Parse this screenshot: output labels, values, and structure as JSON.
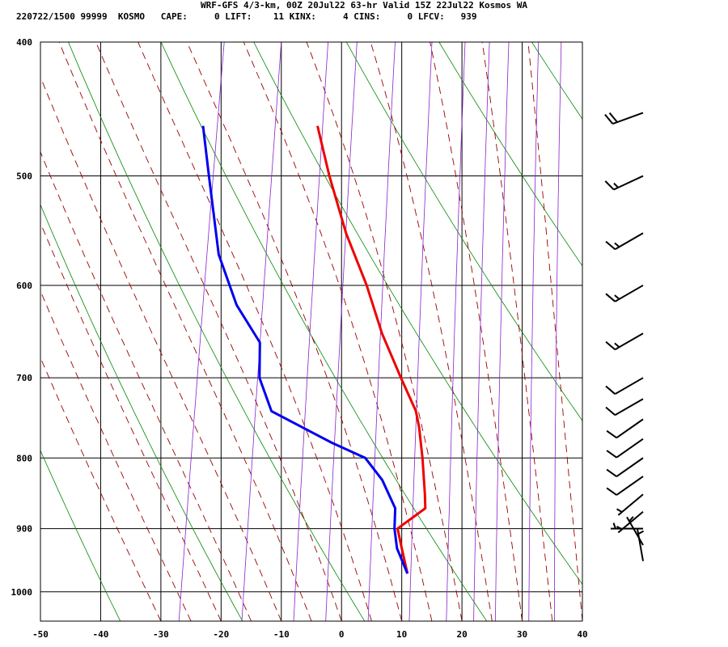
{
  "header": {
    "title": "WRF-GFS 4/3-km, 00Z 20Jul22 63-hr Valid 15Z 22Jul22 Kosmos WA",
    "stats": "220722/1500 99999  KOSMO   CAPE:     0 LIFT:    11 KINX:     4 CINS:     0 LFCV:   939"
  },
  "colors": {
    "temperature": "#ee0000",
    "dewpoint": "#0000ee",
    "dry_adiabat": "#008800",
    "moist_adiabat": "#990000",
    "mixing_ratio": "#8822cc",
    "grid": "#000000"
  },
  "chart_data": {
    "type": "line",
    "title": "",
    "xlabel": "",
    "ylabel": "",
    "x_axis": {
      "min": -50,
      "max": 40,
      "ticks": [
        -50,
        -40,
        -30,
        -20,
        -10,
        0,
        10,
        20,
        30,
        40
      ],
      "tick_labels": [
        "-50",
        "-40",
        "-30",
        "-20",
        "-10",
        "0",
        "10",
        "20",
        "30",
        "40"
      ]
    },
    "y_axis": {
      "scale": "log",
      "min": 400,
      "max": 1050,
      "ticks": [
        400,
        500,
        600,
        700,
        800,
        900,
        1000
      ],
      "tick_labels": [
        "400",
        "500",
        "600",
        "700",
        "800",
        "900",
        "1000"
      ]
    },
    "grid": true,
    "skew": true,
    "series": [
      {
        "role": "temperature",
        "points": [
          [
            970,
            9.5
          ],
          [
            930,
            7.8
          ],
          [
            900,
            6.5
          ],
          [
            870,
            10.5
          ],
          [
            850,
            10.0
          ],
          [
            800,
            8.5
          ],
          [
            760,
            7.0
          ],
          [
            740,
            6.0
          ],
          [
            700,
            2.5
          ],
          [
            650,
            -2.0
          ],
          [
            600,
            -6.0
          ],
          [
            550,
            -11.0
          ],
          [
            500,
            -15.5
          ],
          [
            460,
            -19.0
          ]
        ]
      },
      {
        "role": "dewpoint",
        "points": [
          [
            970,
            9.5
          ],
          [
            930,
            7.0
          ],
          [
            900,
            6.0
          ],
          [
            870,
            5.5
          ],
          [
            830,
            2.5
          ],
          [
            800,
            -1.0
          ],
          [
            780,
            -7.0
          ],
          [
            740,
            -18.0
          ],
          [
            700,
            -21.0
          ],
          [
            660,
            -22.0
          ],
          [
            620,
            -27.0
          ],
          [
            570,
            -31.5
          ],
          [
            500,
            -35.5
          ],
          [
            460,
            -38.0
          ]
        ]
      }
    ],
    "wind_barbs": [
      {
        "p": 450,
        "speed": 20,
        "dir": 250
      },
      {
        "p": 500,
        "speed": 15,
        "dir": 245
      },
      {
        "p": 550,
        "speed": 15,
        "dir": 240
      },
      {
        "p": 600,
        "speed": 15,
        "dir": 240
      },
      {
        "p": 650,
        "speed": 15,
        "dir": 240
      },
      {
        "p": 700,
        "speed": 10,
        "dir": 240
      },
      {
        "p": 725,
        "speed": 10,
        "dir": 240
      },
      {
        "p": 750,
        "speed": 10,
        "dir": 235
      },
      {
        "p": 775,
        "speed": 10,
        "dir": 235
      },
      {
        "p": 800,
        "speed": 10,
        "dir": 235
      },
      {
        "p": 825,
        "speed": 10,
        "dir": 235
      },
      {
        "p": 850,
        "speed": 5,
        "dir": 230
      },
      {
        "p": 875,
        "speed": 5,
        "dir": 230
      },
      {
        "p": 900,
        "speed": 5,
        "dir": 270
      },
      {
        "p": 925,
        "speed": 5,
        "dir": 330
      },
      {
        "p": 950,
        "speed": 5,
        "dir": 350
      }
    ]
  }
}
